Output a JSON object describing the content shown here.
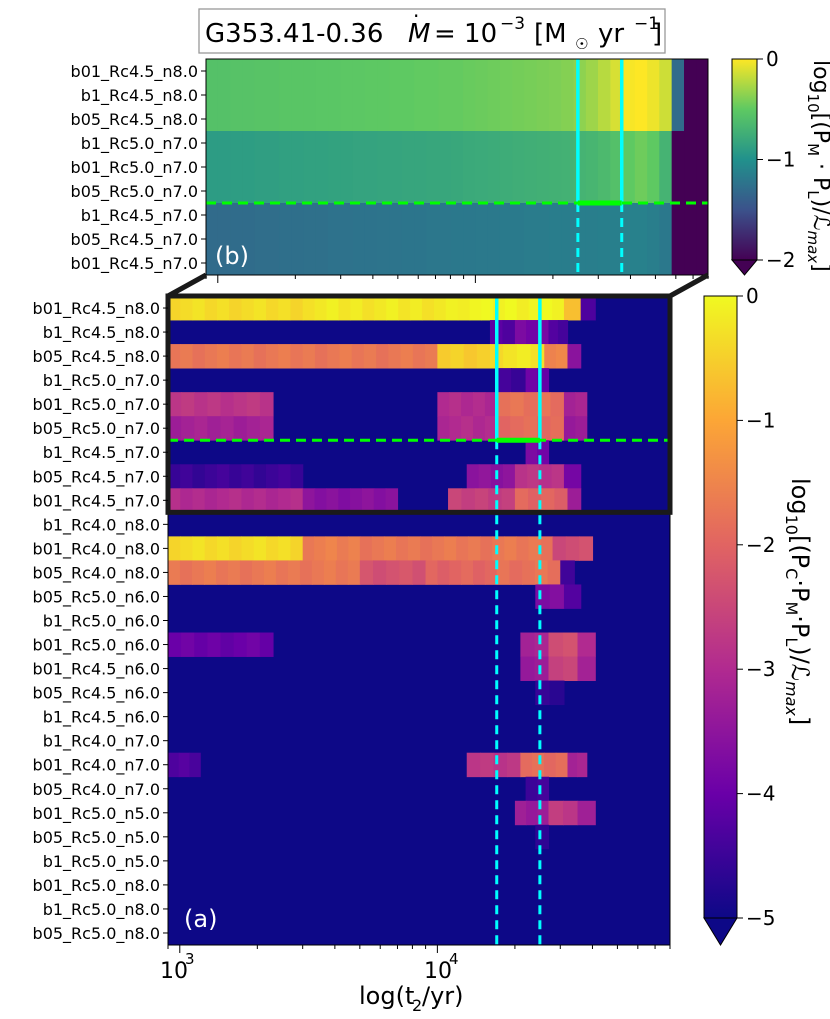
{
  "title": "G353.41-0.36",
  "title_mdot_parts": [
    "M",
    "= 10",
    "−3",
    "[M",
    "☉",
    "yr",
    "−1",
    "]"
  ],
  "panel_b_label": "(b)",
  "panel_a_label": "(a)",
  "xlabel_parts": [
    "log(t",
    "2",
    "/yr)"
  ],
  "xtick_labels": [
    {
      "base": "10",
      "exp": "3"
    },
    {
      "base": "10",
      "exp": "4"
    }
  ],
  "colorbar_top": {
    "label_parts": [
      "log",
      "10",
      "[(P",
      "M",
      " · P",
      "L",
      ")/ℒ",
      "max",
      "]"
    ],
    "ticks": [
      "0",
      "−1",
      "−2"
    ],
    "colors": [
      "#440154",
      "#3b528b",
      "#21918c",
      "#5ec962",
      "#fde725"
    ],
    "range": [
      -2,
      0
    ]
  },
  "colorbar_bottom": {
    "label_parts": [
      "log",
      "10",
      "[(P",
      "C",
      "·P",
      "M",
      "·P",
      "L",
      ")/ℒ",
      "max",
      "]"
    ],
    "ticks": [
      "0",
      "−1",
      "−2",
      "−3",
      "−4",
      "−5"
    ],
    "colors": [
      "#0d0887",
      "#6a00a8",
      "#b12a90",
      "#e16462",
      "#fca636",
      "#f0f921"
    ],
    "range": [
      -5,
      0
    ]
  },
  "overlay_colors": {
    "cyan": "#00ffff",
    "green": "#00ff00",
    "box": "#1a1a1a"
  },
  "chart_data": [
    {
      "id": "panel-b",
      "type": "heatmap",
      "xscale": "log",
      "xlim": [
        900,
        80000
      ],
      "x_bins_log10": [
        2.954,
        3.0,
        3.048,
        3.095,
        3.143,
        3.19,
        3.238,
        3.286,
        3.333,
        3.381,
        3.429,
        3.476,
        3.524,
        3.571,
        3.619,
        3.667,
        3.714,
        3.762,
        3.81,
        3.857,
        3.905,
        3.952,
        4.0,
        4.048,
        4.095,
        4.143,
        4.19,
        4.238,
        4.286,
        4.333,
        4.381,
        4.429,
        4.476,
        4.524,
        4.571,
        4.619,
        4.667,
        4.714,
        4.762,
        4.81,
        4.857,
        4.903
      ],
      "rows": [
        "b01_Rc4.5_n8.0",
        "b1_Rc4.5_n8.0",
        "b05_Rc4.5_n8.0",
        "b1_Rc5.0_n7.0",
        "b01_Rc5.0_n7.0",
        "b05_Rc5.0_n7.0",
        "b1_Rc4.5_n7.0",
        "b05_Rc4.5_n7.0",
        "b01_Rc4.5_n7.0"
      ],
      "groups": [
        {
          "rows": [
            0,
            1,
            2
          ],
          "values": [
            -0.57,
            -0.57,
            -0.56,
            -0.56,
            -0.55,
            -0.55,
            -0.54,
            -0.54,
            -0.54,
            -0.53,
            -0.53,
            -0.52,
            -0.52,
            -0.51,
            -0.51,
            -0.5,
            -0.5,
            -0.49,
            -0.49,
            -0.48,
            -0.48,
            -0.47,
            -0.46,
            -0.45,
            -0.44,
            -0.43,
            -0.42,
            -0.41,
            -0.4,
            -0.38,
            -0.35,
            -0.3,
            -0.22,
            -0.12,
            -0.02,
            0.0,
            -0.05,
            -0.15,
            -1.3,
            -2,
            -2,
            -2
          ]
        },
        {
          "rows": [
            3,
            4,
            5
          ],
          "values": [
            -0.9,
            -0.9,
            -0.89,
            -0.89,
            -0.88,
            -0.88,
            -0.87,
            -0.87,
            -0.86,
            -0.86,
            -0.85,
            -0.85,
            -0.84,
            -0.84,
            -0.83,
            -0.83,
            -0.82,
            -0.82,
            -0.81,
            -0.81,
            -0.8,
            -0.79,
            -0.78,
            -0.77,
            -0.76,
            -0.75,
            -0.74,
            -0.73,
            -0.72,
            -0.71,
            -0.7,
            -0.68,
            -0.64,
            -0.58,
            -0.5,
            -0.45,
            -0.5,
            -0.7,
            -2,
            -2,
            -2,
            -2
          ]
        },
        {
          "rows": [
            6,
            7,
            8
          ],
          "values": [
            -1.3,
            -1.3,
            -1.29,
            -1.29,
            -1.28,
            -1.28,
            -1.27,
            -1.27,
            -1.26,
            -1.26,
            -1.25,
            -1.25,
            -1.24,
            -1.24,
            -1.23,
            -1.23,
            -1.22,
            -1.22,
            -1.21,
            -1.21,
            -1.2,
            -1.2,
            -1.19,
            -1.19,
            -1.18,
            -1.18,
            -1.17,
            -1.17,
            -1.16,
            -1.16,
            -1.15,
            -1.15,
            -1.14,
            -1.14,
            -1.13,
            -1.13,
            -1.15,
            -1.2,
            -2,
            -2,
            -2,
            -2
          ]
        }
      ],
      "v_lines_solid_t": [
        25000,
        37000
      ],
      "v_lines_dashed_t": [
        25000,
        37000
      ],
      "h_line_dashed_between_rows": [
        5,
        6
      ],
      "green_segment_t": [
        25000,
        37000
      ]
    },
    {
      "id": "panel-a",
      "type": "heatmap",
      "xscale": "log",
      "xlim": [
        900,
        80000
      ],
      "rows": [
        "b01_Rc4.5_n8.0",
        "b1_Rc4.5_n8.0",
        "b05_Rc4.5_n8.0",
        "b1_Rc5.0_n7.0",
        "b01_Rc5.0_n7.0",
        "b05_Rc5.0_n7.0",
        "b1_Rc4.5_n7.0",
        "b05_Rc4.5_n7.0",
        "b01_Rc4.5_n7.0",
        "b1_Rc4.0_n8.0",
        "b01_Rc4.0_n8.0",
        "b05_Rc4.0_n8.0",
        "b05_Rc5.0_n6.0",
        "b1_Rc5.0_n6.0",
        "b01_Rc5.0_n6.0",
        "b01_Rc4.5_n6.0",
        "b05_Rc4.5_n6.0",
        "b1_Rc4.5_n6.0",
        "b1_Rc4.0_n7.0",
        "b01_Rc4.0_n7.0",
        "b05_Rc4.0_n7.0",
        "b01_Rc5.0_n5.0",
        "b05_Rc5.0_n5.0",
        "b1_Rc5.0_n5.0",
        "b01_Rc5.0_n8.0",
        "b1_Rc5.0_n8.0",
        "b05_Rc5.0_n8.0"
      ],
      "row_profiles": [
        {
          "row": 0,
          "segments": [
            {
              "t": [
                900,
                3000
              ],
              "v": -0.35
            },
            {
              "t": [
                3000,
                12000
              ],
              "v": -0.2
            },
            {
              "t": [
                12000,
                31000
              ],
              "v": -0.05
            },
            {
              "t": [
                31000,
                36000
              ],
              "v": -0.6
            },
            {
              "t": [
                36000,
                41000
              ],
              "v": -4.2
            }
          ]
        },
        {
          "row": 1,
          "segments": [
            {
              "t": [
                16000,
                20000
              ],
              "v": -4.2
            },
            {
              "t": [
                20000,
                27000
              ],
              "v": -3.8
            },
            {
              "t": [
                27000,
                32000
              ],
              "v": -4.3
            }
          ]
        },
        {
          "row": 2,
          "segments": [
            {
              "t": [
                900,
                10000
              ],
              "v": -1.7
            },
            {
              "t": [
                10000,
                18000
              ],
              "v": -0.5
            },
            {
              "t": [
                18000,
                26000
              ],
              "v": -0.2
            },
            {
              "t": [
                26000,
                32000
              ],
              "v": -1.5
            },
            {
              "t": [
                32000,
                36000
              ],
              "v": -3.5
            }
          ]
        },
        {
          "row": 3,
          "segments": [
            {
              "t": [
                17000,
                22000
              ],
              "v": -4.5
            },
            {
              "t": [
                22000,
                27000
              ],
              "v": -4.0
            }
          ]
        },
        {
          "row": 4,
          "segments": [
            {
              "t": [
                900,
                2300
              ],
              "v": -2.8
            },
            {
              "t": [
                10000,
                17000
              ],
              "v": -3.0
            },
            {
              "t": [
                17000,
                31000
              ],
              "v": -1.8
            },
            {
              "t": [
                31000,
                38000
              ],
              "v": -3.2
            }
          ]
        },
        {
          "row": 5,
          "segments": [
            {
              "t": [
                900,
                2300
              ],
              "v": -3.2
            },
            {
              "t": [
                10000,
                17000
              ],
              "v": -3.0
            },
            {
              "t": [
                17000,
                31000
              ],
              "v": -1.9
            },
            {
              "t": [
                31000,
                38000
              ],
              "v": -3.3
            }
          ]
        },
        {
          "row": 6,
          "segments": [
            {
              "t": [
                22000,
                27000
              ],
              "v": -3.8
            }
          ]
        },
        {
          "row": 7,
          "segments": [
            {
              "t": [
                900,
                3000
              ],
              "v": -4.5
            },
            {
              "t": [
                13000,
                20000
              ],
              "v": -3.5
            },
            {
              "t": [
                20000,
                31000
              ],
              "v": -2.8
            },
            {
              "t": [
                31000,
                36000
              ],
              "v": -3.8
            }
          ]
        },
        {
          "row": 8,
          "segments": [
            {
              "t": [
                900,
                3000
              ],
              "v": -3.0
            },
            {
              "t": [
                3000,
                7000
              ],
              "v": -3.6
            },
            {
              "t": [
                11000,
                20000
              ],
              "v": -2.6
            },
            {
              "t": [
                20000,
                32000
              ],
              "v": -2.0
            },
            {
              "t": [
                32000,
                36000
              ],
              "v": -3.4
            }
          ]
        },
        {
          "row": 10,
          "segments": [
            {
              "t": [
                900,
                3000
              ],
              "v": -0.35
            },
            {
              "t": [
                3000,
                5000
              ],
              "v": -1.6
            },
            {
              "t": [
                5000,
                28000
              ],
              "v": -1.7
            },
            {
              "t": [
                28000,
                40000
              ],
              "v": -2.4
            }
          ]
        },
        {
          "row": 11,
          "segments": [
            {
              "t": [
                900,
                5000
              ],
              "v": -1.7
            },
            {
              "t": [
                5000,
                9000
              ],
              "v": -2.3
            },
            {
              "t": [
                9000,
                17000
              ],
              "v": -2.0
            },
            {
              "t": [
                17000,
                30000
              ],
              "v": -1.8
            },
            {
              "t": [
                30000,
                34000
              ],
              "v": -4.5
            }
          ]
        },
        {
          "row": 12,
          "segments": [
            {
              "t": [
                24000,
                31000
              ],
              "v": -3.7
            },
            {
              "t": [
                31000,
                36000
              ],
              "v": -4.2
            }
          ]
        },
        {
          "row": 14,
          "segments": [
            {
              "t": [
                900,
                2300
              ],
              "v": -4.0
            },
            {
              "t": [
                21000,
                27000
              ],
              "v": -3.2
            },
            {
              "t": [
                27000,
                35000
              ],
              "v": -2.4
            },
            {
              "t": [
                35000,
                41000
              ],
              "v": -3.0
            }
          ]
        },
        {
          "row": 15,
          "segments": [
            {
              "t": [
                21000,
                27000
              ],
              "v": -3.3
            },
            {
              "t": [
                27000,
                35000
              ],
              "v": -2.5
            },
            {
              "t": [
                35000,
                41000
              ],
              "v": -3.1
            }
          ]
        },
        {
          "row": 16,
          "segments": [
            {
              "t": [
                24000,
                31000
              ],
              "v": -4.6
            }
          ]
        },
        {
          "row": 19,
          "segments": [
            {
              "t": [
                900,
                1200
              ],
              "v": -4.3
            },
            {
              "t": [
                13000,
                21000
              ],
              "v": -2.8
            },
            {
              "t": [
                21000,
                32000
              ],
              "v": -1.9
            },
            {
              "t": [
                32000,
                38000
              ],
              "v": -3.2
            }
          ]
        },
        {
          "row": 20,
          "segments": [
            {
              "t": [
                22000,
                27000
              ],
              "v": -4.4
            }
          ]
        },
        {
          "row": 21,
          "segments": [
            {
              "t": [
                20000,
                27000
              ],
              "v": -3.3
            },
            {
              "t": [
                27000,
                35000
              ],
              "v": -2.7
            },
            {
              "t": [
                35000,
                41000
              ],
              "v": -3.3
            }
          ]
        },
        {
          "row": 22,
          "segments": [
            {
              "t": [
                24000,
                27000
              ],
              "v": -4.6
            }
          ]
        }
      ],
      "v_lines_solid_t": [
        17000,
        25000
      ],
      "v_lines_dashed_t": [
        17000,
        25000
      ],
      "h_line_dashed_between_rows": [
        5,
        6
      ],
      "zoom_box_rows": [
        0,
        8
      ]
    }
  ]
}
